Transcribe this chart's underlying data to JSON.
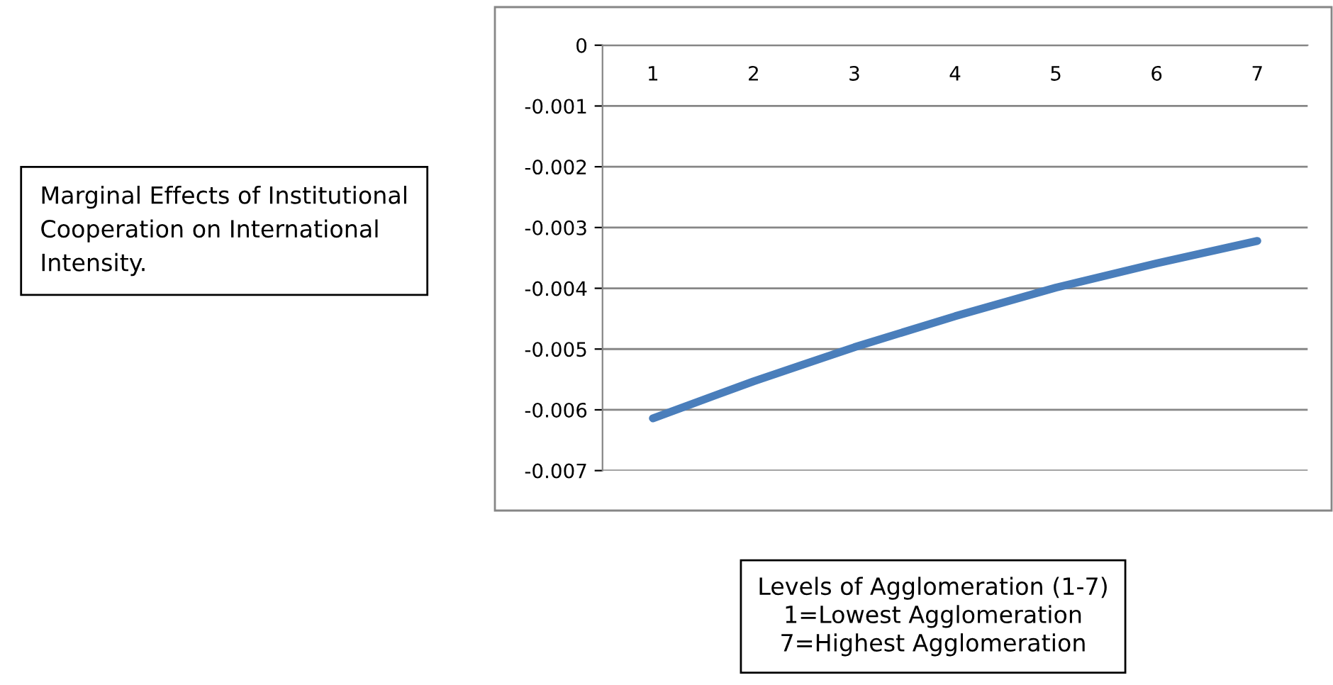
{
  "chart_data": {
    "type": "line",
    "title": "Marginal Effects of Institutional\nCooperation on International\nIntensity.",
    "xlabel": "Levels of Agglomeration (1-7)\n1=Lowest Agglomeration\n7=Highest Agglomeration",
    "categories": [
      "1",
      "2",
      "3",
      "4",
      "5",
      "6",
      "7"
    ],
    "series": [
      {
        "color": "#4a7ebb",
        "values": [
          -0.00614,
          -0.00553,
          -0.00497,
          -0.00446,
          -0.00399,
          -0.00359,
          -0.00322
        ]
      }
    ],
    "ylim": [
      -0.007,
      0
    ],
    "yticks": [
      0,
      -0.001,
      -0.002,
      -0.003,
      -0.004,
      -0.005,
      -0.006,
      -0.007
    ],
    "grid": "y",
    "legend": false,
    "marker": "none",
    "line_style": "solid"
  }
}
